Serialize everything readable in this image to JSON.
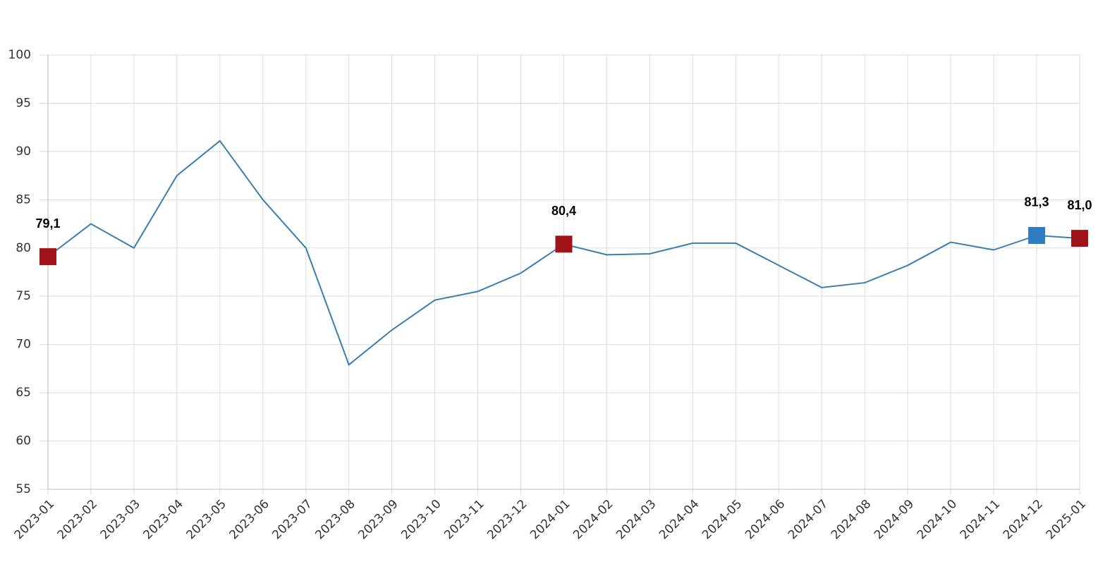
{
  "chart_data": {
    "type": "line",
    "categories": [
      "2023-01",
      "2023-02",
      "2023-03",
      "2023-04",
      "2023-05",
      "2023-06",
      "2023-07",
      "2023-08",
      "2023-09",
      "2023-10",
      "2023-11",
      "2023-12",
      "2024-01",
      "2024-02",
      "2024-03",
      "2024-04",
      "2024-05",
      "2024-06",
      "2024-07",
      "2024-08",
      "2024-09",
      "2024-10",
      "2024-11",
      "2024-12",
      "2025-01"
    ],
    "values": [
      79.1,
      82.5,
      80.0,
      87.5,
      91.1,
      85.0,
      80.0,
      67.9,
      71.5,
      74.6,
      75.5,
      77.4,
      80.4,
      79.3,
      79.4,
      80.5,
      80.5,
      78.2,
      75.9,
      76.4,
      78.2,
      80.6,
      79.8,
      81.3,
      81.0
    ],
    "value_labels": [
      "79,1",
      null,
      null,
      null,
      null,
      null,
      null,
      null,
      null,
      null,
      null,
      null,
      "80,4",
      null,
      null,
      null,
      null,
      null,
      null,
      null,
      null,
      null,
      null,
      "81,3",
      "81,0"
    ],
    "marker_colors": [
      "#a01419",
      null,
      null,
      null,
      null,
      null,
      null,
      null,
      null,
      null,
      null,
      null,
      "#a01419",
      null,
      null,
      null,
      null,
      null,
      null,
      null,
      null,
      null,
      null,
      "#2f7dbf",
      "#a01419"
    ],
    "color": "#3a7db0",
    "ylim": [
      55,
      100
    ],
    "yticks": [
      55,
      60,
      65,
      70,
      75,
      80,
      85,
      90,
      95,
      100
    ],
    "grid": true
  }
}
